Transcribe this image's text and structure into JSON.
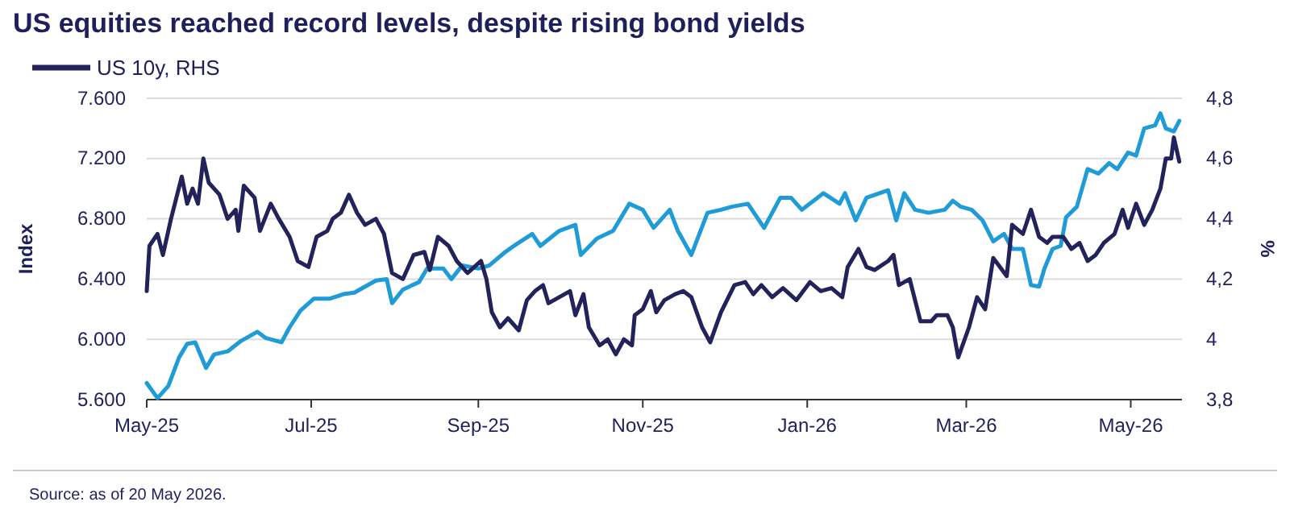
{
  "chart_data": {
    "type": "line",
    "title": "US equities reached record levels, despite rising bond yields",
    "ylabel": "Index",
    "y2label": "%",
    "annotations": [
      "Source: as of 20 May 2026."
    ],
    "xlim": [
      "2025-05-01",
      "2026-05-20"
    ],
    "xticks": [
      {
        "value": "2025-05-01",
        "label": "May-25"
      },
      {
        "value": "2025-07-01",
        "label": "Jul-25"
      },
      {
        "value": "2025-09-01",
        "label": "Sep-25"
      },
      {
        "value": "2025-11-01",
        "label": "Nov-25"
      },
      {
        "value": "2026-01-01",
        "label": "Jan-26"
      },
      {
        "value": "2026-03-01",
        "label": "Mar-26"
      },
      {
        "value": "2026-05-01",
        "label": "May-26"
      }
    ],
    "ylim": [
      5600,
      7600
    ],
    "yticks": [
      {
        "value": 5600,
        "label": "5.600"
      },
      {
        "value": 6000,
        "label": "6.000"
      },
      {
        "value": 6400,
        "label": "6.400"
      },
      {
        "value": 6800,
        "label": "6.800"
      },
      {
        "value": 7200,
        "label": "7.200"
      },
      {
        "value": 7600,
        "label": "7.600"
      }
    ],
    "y2lim": [
      3.8,
      4.8
    ],
    "y2ticks": [
      {
        "value": 3.8,
        "label": "3,8"
      },
      4,
      {
        "value": 4.2,
        "label": "4,2"
      },
      {
        "value": 4.4,
        "label": "4,4"
      },
      {
        "value": 4.6,
        "label": "4,6"
      },
      {
        "value": 4.8,
        "label": "4,8"
      }
    ],
    "grid": "y",
    "legend": "top left",
    "line_style": "solid",
    "series": [
      {
        "color": "#1f9bd7",
        "x": [
          "2025-05-01",
          "2025-05-05",
          "2025-05-09",
          "2025-05-13",
          "2025-05-16",
          "2025-05-19",
          "2025-05-23",
          "2025-05-26",
          "2025-05-31",
          "2025-06-05",
          "2025-06-11",
          "2025-06-14",
          "2025-06-20",
          "2025-06-23",
          "2025-06-27",
          "2025-07-02",
          "2025-07-08",
          "2025-07-13",
          "2025-07-17",
          "2025-07-21",
          "2025-07-25",
          "2025-07-29",
          "2025-07-31",
          "2025-08-04",
          "2025-08-10",
          "2025-08-13",
          "2025-08-19",
          "2025-08-22",
          "2025-08-26",
          "2025-09-01",
          "2025-09-05",
          "2025-09-11",
          "2025-09-15",
          "2025-09-21",
          "2025-09-24",
          "2025-10-01",
          "2025-10-07",
          "2025-10-09",
          "2025-10-15",
          "2025-10-21",
          "2025-10-27",
          "2025-11-01",
          "2025-11-05",
          "2025-11-11",
          "2025-11-14",
          "2025-11-19",
          "2025-11-25",
          "2025-11-30",
          "2025-12-04",
          "2025-12-10",
          "2025-12-16",
          "2025-12-22",
          "2025-12-26",
          "2025-12-30",
          "2026-01-07",
          "2026-01-13",
          "2026-01-15",
          "2026-01-19",
          "2026-01-23",
          "2026-01-31",
          "2026-02-03",
          "2026-02-06",
          "2026-02-10",
          "2026-02-15",
          "2026-02-21",
          "2026-02-24",
          "2026-02-27",
          "2026-03-03",
          "2026-03-07",
          "2026-03-11",
          "2026-03-15",
          "2026-03-18",
          "2026-03-22",
          "2026-03-25",
          "2026-03-28",
          "2026-03-30",
          "2026-04-02",
          "2026-04-05",
          "2026-04-07",
          "2026-04-11",
          "2026-04-15",
          "2026-04-19",
          "2026-04-23",
          "2026-04-26",
          "2026-04-30",
          "2026-05-03",
          "2026-05-06",
          "2026-05-10",
          "2026-05-12",
          "2026-05-14",
          "2026-05-17",
          "2026-05-19"
        ],
        "values": [
          5710,
          5610,
          5690,
          5880,
          5970,
          5980,
          5810,
          5900,
          5920,
          5990,
          6050,
          6010,
          5980,
          6080,
          6190,
          6270,
          6270,
          6300,
          6310,
          6350,
          6390,
          6400,
          6240,
          6330,
          6380,
          6470,
          6470,
          6400,
          6490,
          6470,
          6490,
          6580,
          6630,
          6700,
          6620,
          6720,
          6760,
          6560,
          6670,
          6720,
          6900,
          6860,
          6740,
          6860,
          6720,
          6560,
          6840,
          6860,
          6880,
          6900,
          6740,
          6940,
          6940,
          6860,
          6970,
          6900,
          6970,
          6790,
          6940,
          6990,
          6790,
          6970,
          6860,
          6840,
          6860,
          6920,
          6880,
          6860,
          6790,
          6650,
          6700,
          6600,
          6600,
          6360,
          6350,
          6470,
          6600,
          6620,
          6810,
          6880,
          7130,
          7100,
          7170,
          7130,
          7240,
          7220,
          7400,
          7420,
          7500,
          7400,
          7380,
          7450
        ]
      },
      {
        "name": "US 10y, RHS",
        "color": "#23225a",
        "axis": "y2",
        "x": [
          "2025-05-01",
          "2025-05-02",
          "2025-05-05",
          "2025-05-07",
          "2025-05-10",
          "2025-05-14",
          "2025-05-16",
          "2025-05-18",
          "2025-05-20",
          "2025-05-22",
          "2025-05-24",
          "2025-05-28",
          "2025-05-31",
          "2025-06-03",
          "2025-06-04",
          "2025-06-06",
          "2025-06-10",
          "2025-06-12",
          "2025-06-16",
          "2025-06-19",
          "2025-06-23",
          "2025-06-26",
          "2025-06-30",
          "2025-07-03",
          "2025-07-07",
          "2025-07-09",
          "2025-07-12",
          "2025-07-15",
          "2025-07-18",
          "2025-07-21",
          "2025-07-25",
          "2025-07-28",
          "2025-07-31",
          "2025-08-04",
          "2025-08-08",
          "2025-08-12",
          "2025-08-14",
          "2025-08-17",
          "2025-08-21",
          "2025-08-24",
          "2025-08-28",
          "2025-09-02",
          "2025-09-04",
          "2025-09-06",
          "2025-09-09",
          "2025-09-12",
          "2025-09-16",
          "2025-09-19",
          "2025-09-22",
          "2025-09-25",
          "2025-09-27",
          "2025-10-01",
          "2025-10-05",
          "2025-10-07",
          "2025-10-10",
          "2025-10-12",
          "2025-10-16",
          "2025-10-19",
          "2025-10-22",
          "2025-10-25",
          "2025-10-28",
          "2025-10-29",
          "2025-11-01",
          "2025-11-04",
          "2025-11-06",
          "2025-11-09",
          "2025-11-13",
          "2025-11-16",
          "2025-11-19",
          "2025-11-23",
          "2025-11-26",
          "2025-11-30",
          "2025-12-05",
          "2025-12-09",
          "2025-12-12",
          "2025-12-15",
          "2025-12-19",
          "2025-12-23",
          "2025-12-28",
          "2026-01-02",
          "2026-01-06",
          "2026-01-10",
          "2026-01-14",
          "2026-01-16",
          "2026-01-20",
          "2026-01-23",
          "2026-01-26",
          "2026-01-31",
          "2026-02-02",
          "2026-02-04",
          "2026-02-08",
          "2026-02-12",
          "2026-02-16",
          "2026-02-18",
          "2026-02-22",
          "2026-02-24",
          "2026-02-26",
          "2026-03-02",
          "2026-03-05",
          "2026-03-08",
          "2026-03-11",
          "2026-03-16",
          "2026-03-18",
          "2026-03-22",
          "2026-03-25",
          "2026-03-28",
          "2026-03-31",
          "2026-04-02",
          "2026-04-06",
          "2026-04-09",
          "2026-04-12",
          "2026-04-15",
          "2026-04-18",
          "2026-04-21",
          "2026-04-25",
          "2026-04-28",
          "2026-04-30",
          "2026-05-03",
          "2026-05-06",
          "2026-05-09",
          "2026-05-12",
          "2026-05-14",
          "2026-05-16",
          "2026-05-17",
          "2026-05-19"
        ],
        "values": [
          4.16,
          4.31,
          4.35,
          4.28,
          4.4,
          4.54,
          4.45,
          4.5,
          4.45,
          4.6,
          4.52,
          4.48,
          4.4,
          4.43,
          4.36,
          4.51,
          4.47,
          4.36,
          4.45,
          4.4,
          4.34,
          4.26,
          4.24,
          4.34,
          4.36,
          4.4,
          4.42,
          4.48,
          4.42,
          4.38,
          4.4,
          4.35,
          4.22,
          4.2,
          4.28,
          4.29,
          4.23,
          4.34,
          4.31,
          4.26,
          4.22,
          4.26,
          4.2,
          4.09,
          4.04,
          4.07,
          4.03,
          4.13,
          4.16,
          4.18,
          4.12,
          4.14,
          4.16,
          4.08,
          4.15,
          4.04,
          3.98,
          4.0,
          3.95,
          4.0,
          3.98,
          4.08,
          4.1,
          4.16,
          4.09,
          4.13,
          4.15,
          4.16,
          4.14,
          4.04,
          3.99,
          4.09,
          4.18,
          4.19,
          4.15,
          4.18,
          4.14,
          4.17,
          4.13,
          4.19,
          4.16,
          4.17,
          4.14,
          4.24,
          4.3,
          4.24,
          4.23,
          4.26,
          4.28,
          4.18,
          4.2,
          4.06,
          4.06,
          4.08,
          4.08,
          4.04,
          3.94,
          4.04,
          4.14,
          4.1,
          4.27,
          4.21,
          4.38,
          4.35,
          4.43,
          4.34,
          4.32,
          4.34,
          4.34,
          4.3,
          4.32,
          4.26,
          4.28,
          4.32,
          4.35,
          4.43,
          4.37,
          4.45,
          4.38,
          4.43,
          4.5,
          4.6,
          4.6,
          4.67,
          4.59
        ]
      }
    ]
  }
}
